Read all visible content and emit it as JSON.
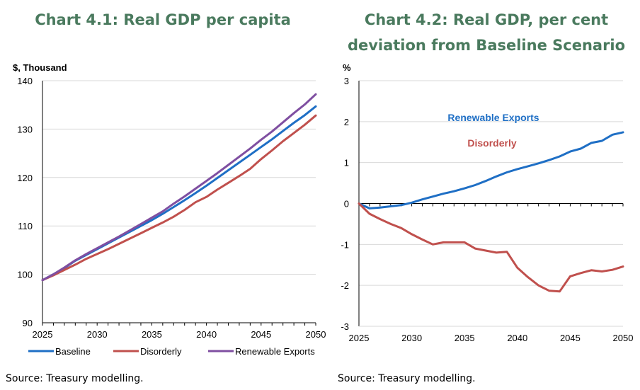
{
  "chart_data": [
    {
      "type": "line",
      "title": "Chart 4.1: Real GDP per capita",
      "ylabel": "$, Thousand",
      "xlabel": "",
      "xlim": [
        2025,
        2050
      ],
      "ylim": [
        90,
        140
      ],
      "x_ticks": [
        2025,
        2030,
        2035,
        2040,
        2045,
        2050
      ],
      "y_ticks": [
        90,
        100,
        110,
        120,
        130,
        140
      ],
      "grid": true,
      "legend_position": "bottom",
      "x": [
        2025,
        2026,
        2027,
        2028,
        2029,
        2030,
        2031,
        2032,
        2033,
        2034,
        2035,
        2036,
        2037,
        2038,
        2039,
        2040,
        2041,
        2042,
        2043,
        2044,
        2045,
        2046,
        2047,
        2048,
        2049,
        2050
      ],
      "series": [
        {
          "name": "Baseline",
          "color": "#1f6fc5",
          "values": [
            98.8,
            100.0,
            101.3,
            102.8,
            104.0,
            105.2,
            106.4,
            107.6,
            108.8,
            110.0,
            111.2,
            112.5,
            113.9,
            115.3,
            116.8,
            118.3,
            119.9,
            121.5,
            123.1,
            124.7,
            126.3,
            127.9,
            129.6,
            131.3,
            132.9,
            134.7
          ]
        },
        {
          "name": "Disorderly",
          "color": "#c0504d",
          "values": [
            98.8,
            99.8,
            100.9,
            102.0,
            103.2,
            104.2,
            105.2,
            106.3,
            107.4,
            108.5,
            109.6,
            110.7,
            111.9,
            113.3,
            114.9,
            116.0,
            117.5,
            118.9,
            120.3,
            121.8,
            123.8,
            125.6,
            127.5,
            129.2,
            130.9,
            132.8
          ]
        },
        {
          "name": "Renewable Exports",
          "color": "#7f4fa1",
          "values": [
            98.8,
            100.0,
            101.4,
            102.9,
            104.2,
            105.4,
            106.6,
            107.8,
            109.1,
            110.4,
            111.7,
            113.0,
            114.6,
            116.1,
            117.7,
            119.3,
            120.9,
            122.6,
            124.3,
            126.0,
            127.8,
            129.5,
            131.4,
            133.3,
            135.1,
            137.2
          ]
        }
      ]
    },
    {
      "type": "line",
      "title": "Chart 4.2: Real GDP, per cent deviation from Baseline Scenario",
      "ylabel": "%",
      "xlabel": "",
      "xlim": [
        2025,
        2050
      ],
      "ylim": [
        -3,
        3
      ],
      "x_ticks": [
        2025,
        2030,
        2035,
        2040,
        2045,
        2050
      ],
      "y_ticks": [
        -3,
        -2,
        -1,
        0,
        1,
        2,
        3
      ],
      "grid": true,
      "legend_position": "inline labels",
      "x": [
        2025,
        2026,
        2027,
        2028,
        2029,
        2030,
        2031,
        2032,
        2033,
        2034,
        2035,
        2036,
        2037,
        2038,
        2039,
        2040,
        2041,
        2042,
        2043,
        2044,
        2045,
        2046,
        2047,
        2048,
        2049,
        2050
      ],
      "series": [
        {
          "name": "Renewable Exports",
          "color": "#1f6fc5",
          "values": [
            0.0,
            -0.12,
            -0.1,
            -0.07,
            -0.04,
            0.02,
            0.1,
            0.17,
            0.24,
            0.3,
            0.37,
            0.45,
            0.55,
            0.66,
            0.76,
            0.84,
            0.91,
            0.98,
            1.06,
            1.15,
            1.27,
            1.34,
            1.48,
            1.53,
            1.68,
            1.74
          ]
        },
        {
          "name": "Disorderly",
          "color": "#c0504d",
          "values": [
            0.0,
            -0.25,
            -0.38,
            -0.5,
            -0.6,
            -0.75,
            -0.88,
            -1.0,
            -0.95,
            -0.95,
            -0.95,
            -1.1,
            -1.15,
            -1.2,
            -1.18,
            -1.57,
            -1.8,
            -2.0,
            -2.13,
            -2.15,
            -1.78,
            -1.7,
            -1.63,
            -1.66,
            -1.62,
            -1.54
          ]
        }
      ]
    }
  ],
  "sources": [
    "Source: Treasury modelling.",
    "Source: Treasury modelling."
  ]
}
